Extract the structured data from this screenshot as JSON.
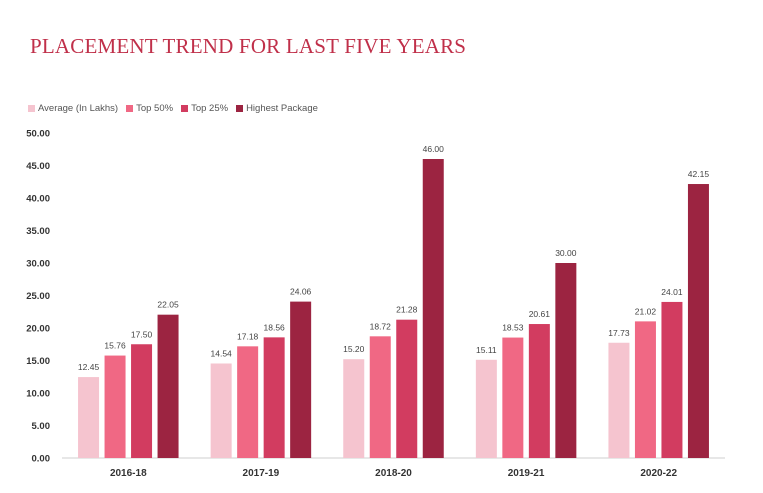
{
  "title": "PLACEMENT TREND FOR LAST FIVE YEARS",
  "chart_data": {
    "type": "bar",
    "categories": [
      "2016-18",
      "2017-19",
      "2018-20",
      "2019-21",
      "2020-22"
    ],
    "series": [
      {
        "name": "Average (In Lakhs)",
        "color": "#f5c4cf",
        "values": [
          12.45,
          14.54,
          15.2,
          15.11,
          17.73
        ],
        "labels": [
          "12.45",
          "14.54",
          "15.20",
          "15.11",
          "17.73"
        ]
      },
      {
        "name": "Top 50%",
        "color": "#f06884",
        "values": [
          15.76,
          17.18,
          18.72,
          18.53,
          21.02
        ],
        "labels": [
          "15.76",
          "17.18",
          "18.72",
          "18.53",
          "21.02"
        ]
      },
      {
        "name": "Top 25%",
        "color": "#d23c60",
        "values": [
          17.5,
          18.56,
          21.28,
          20.61,
          24.01
        ],
        "labels": [
          "17.50",
          "18.56",
          "21.28",
          "20.61",
          "24.01"
        ]
      },
      {
        "name": "Highest Package",
        "color": "#9c2441",
        "values": [
          22.05,
          24.06,
          46.0,
          30.0,
          42.15
        ],
        "labels": [
          "22.05",
          "24.06",
          "46.00",
          "30.00",
          "42.15"
        ]
      }
    ],
    "yticks": [
      "0.00",
      "5.00",
      "10.00",
      "15.00",
      "20.00",
      "25.00",
      "30.00",
      "35.00",
      "40.00",
      "45.00",
      "50.00"
    ],
    "ylim": [
      0,
      50
    ],
    "grid": false,
    "legend_position": "top-left",
    "xlabel": "",
    "ylabel": ""
  }
}
